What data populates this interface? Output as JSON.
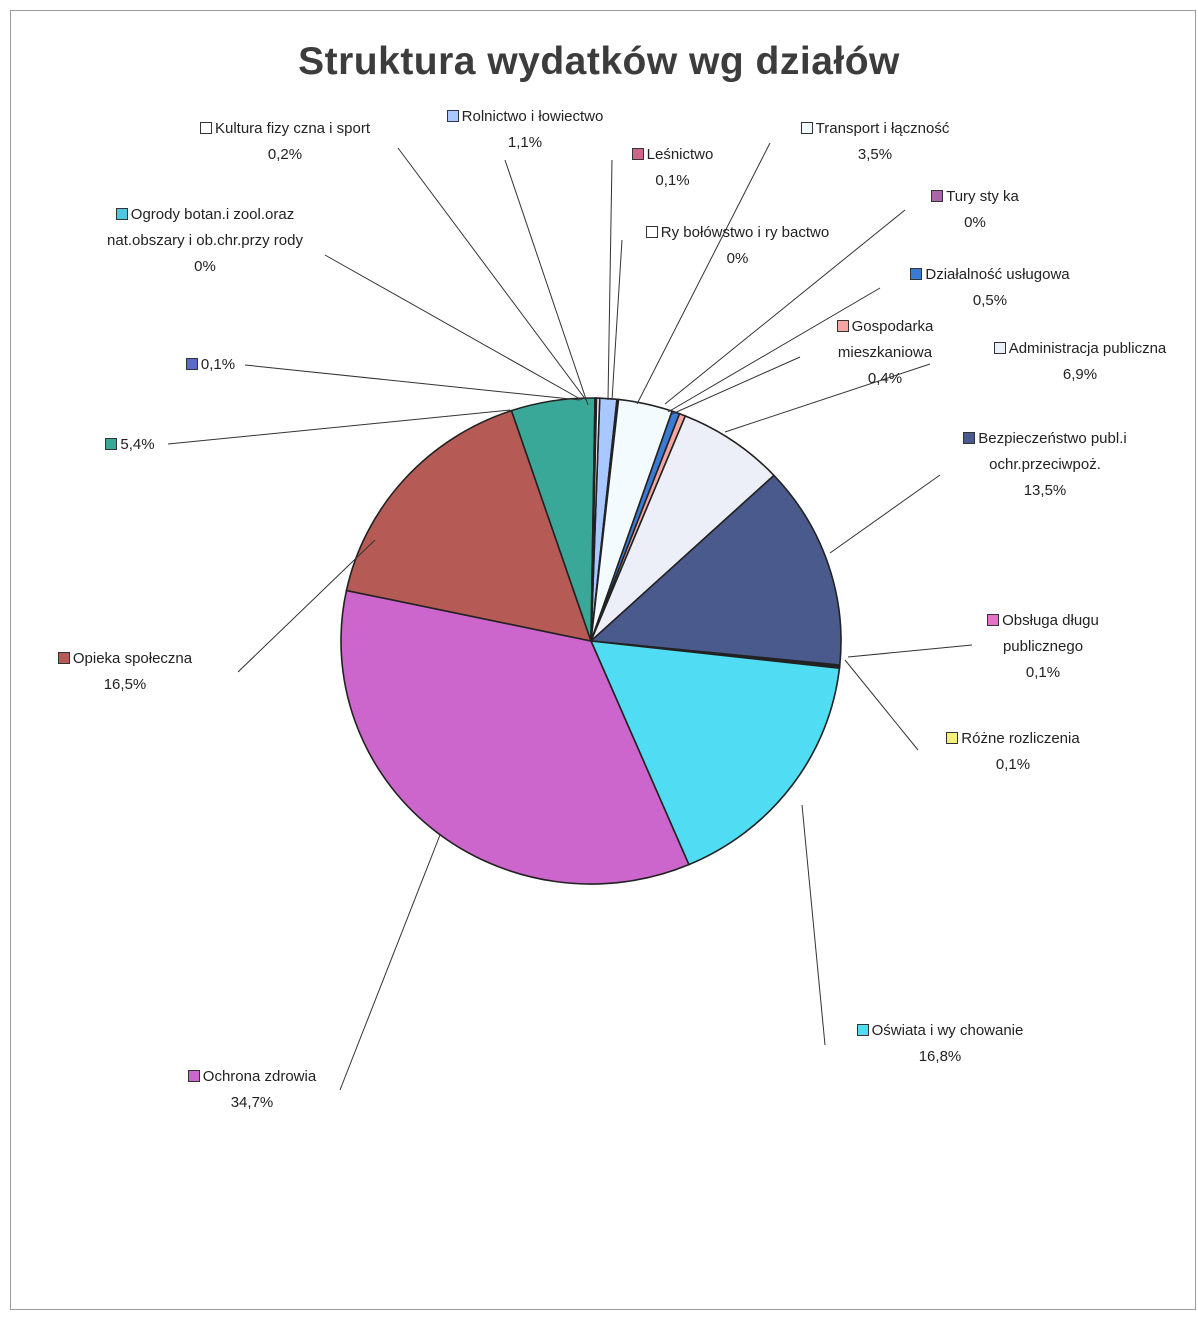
{
  "chart_data": {
    "type": "pie",
    "title": "Struktura wydatków wg działów",
    "slices": [
      {
        "label": "Rolnictwo i łowiectwo",
        "value": 1.1,
        "value_label": "1,1%",
        "color": "#a8c8ff"
      },
      {
        "label": "Leśnictwo",
        "value": 0.1,
        "value_label": "0,1%",
        "color": "#cc6688"
      },
      {
        "label": "Ry bołówstwo i ry bactwo",
        "value": 0,
        "value_label": "0%",
        "color": "#ffffff"
      },
      {
        "label": "Transport i łączność",
        "value": 3.5,
        "value_label": "3,5%",
        "color": "#f4fbff"
      },
      {
        "label": "Tury sty ka",
        "value": 0,
        "value_label": "0%",
        "color": "#aa66aa"
      },
      {
        "label": "Działalność usługowa",
        "value": 0.5,
        "value_label": "0,5%",
        "color": "#3a7bd5"
      },
      {
        "label": "Gospodarka mieszkaniowa",
        "value": 0.4,
        "value_label": "0,4%",
        "color": "#f4a6a0"
      },
      {
        "label": "Administracja publiczna",
        "value": 6.9,
        "value_label": "6,9%",
        "color": "#eceef8"
      },
      {
        "label": "Bezpieczeństwo publ.i ochr.przeciwpoż.",
        "value": 13.5,
        "value_label": "13,5%",
        "color": "#4a5a8c"
      },
      {
        "label": "Obsługa długu publicznego",
        "value": 0.1,
        "value_label": "0,1%",
        "color": "#e870c8"
      },
      {
        "label": "Różne rozliczenia",
        "value": 0.1,
        "value_label": "0,1%",
        "color": "#f4f07a"
      },
      {
        "label": "Oświata i wy chowanie",
        "value": 16.8,
        "value_label": "16,8%",
        "color": "#50dcf2"
      },
      {
        "label": "Ochrona zdrowia",
        "value": 34.7,
        "value_label": "34,7%",
        "color": "#cc66cc"
      },
      {
        "label": "Opieka społeczna",
        "value": 16.5,
        "value_label": "16,5%",
        "color": "#b55a55"
      },
      {
        "label": "",
        "value": 5.4,
        "value_label": "5,4%",
        "color": "#3aa898"
      },
      {
        "label": "",
        "value": 0.1,
        "value_label": "0,1%",
        "color": "#5a6ac8"
      },
      {
        "label": "Ogrody botan.i zool.oraz nat.obszary i ob.chr.przy rody",
        "value": 0,
        "value_label": "0%",
        "color": "#4cc8e0"
      },
      {
        "label": "Kultura fizy czna i sport",
        "value": 0.2,
        "value_label": "0,2%",
        "color": "#ffffff"
      }
    ]
  }
}
